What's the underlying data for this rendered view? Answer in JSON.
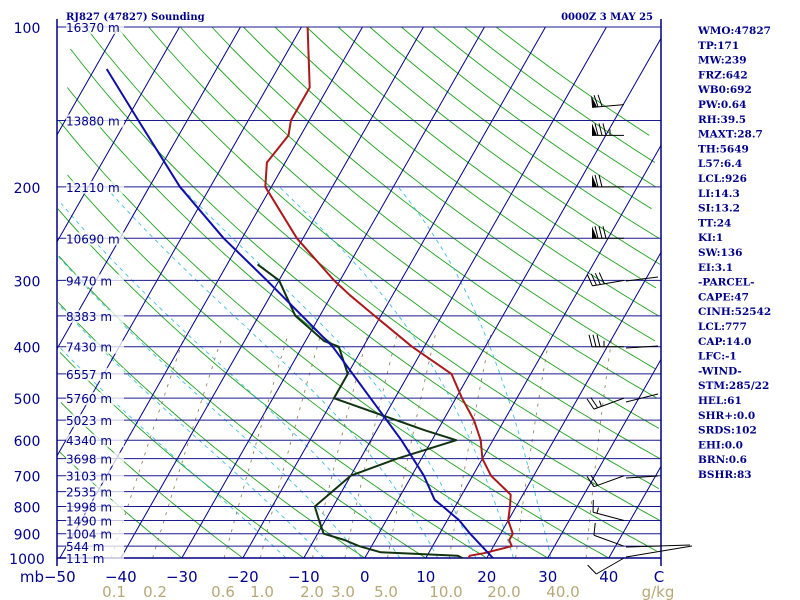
{
  "header": {
    "station": "RJ827 (47827) Sounding",
    "time": "0000Z  3 MAY 25"
  },
  "chart_data": {
    "type": "line",
    "title": "RJ827 (47827) Sounding",
    "x_axis": {
      "label": "mb",
      "ticks": [
        -50,
        -40,
        -30,
        -20,
        -10,
        0,
        10,
        20,
        30,
        40
      ],
      "end_label": "C",
      "range": [
        -50,
        50
      ]
    },
    "y_axis": {
      "ticks": [
        100,
        200,
        300,
        400,
        500,
        600,
        700,
        800,
        900,
        1000
      ],
      "range": [
        1000,
        100
      ],
      "scale": "log-pressure"
    },
    "mixing_ratio_axis": {
      "unit": "g/kg",
      "ticks": [
        "0.1",
        "0.2",
        "0.6",
        "1.0",
        "2.0",
        "3.0",
        "5.0",
        "10.0",
        "20.0",
        "40.0"
      ]
    },
    "heights": [
      {
        "p": 100,
        "label": "16370 m"
      },
      {
        "p": 150,
        "label": "13880 m"
      },
      {
        "p": 200,
        "label": "12110 m"
      },
      {
        "p": 250,
        "label": "10690 m"
      },
      {
        "p": 300,
        "label": "9470 m"
      },
      {
        "p": 350,
        "label": "8383 m"
      },
      {
        "p": 400,
        "label": "7430 m"
      },
      {
        "p": 450,
        "label": "6557 m"
      },
      {
        "p": 500,
        "label": "5760 m"
      },
      {
        "p": 550,
        "label": "5023 m"
      },
      {
        "p": 600,
        "label": "4340 m"
      },
      {
        "p": 650,
        "label": "3698 m"
      },
      {
        "p": 700,
        "label": "3103 m"
      },
      {
        "p": 750,
        "label": "2535 m"
      },
      {
        "p": 800,
        "label": "1998 m"
      },
      {
        "p": 850,
        "label": "1490 m"
      },
      {
        "p": 900,
        "label": "1004 m"
      },
      {
        "p": 950,
        "label": "544 m"
      },
      {
        "p": 1000,
        "label": "111 m"
      }
    ],
    "series": [
      {
        "name": "temperature",
        "color": "#aa1a1a",
        "points": [
          [
            1000,
            17
          ],
          [
            990,
            17
          ],
          [
            980,
            19
          ],
          [
            950,
            23
          ],
          [
            925,
            22
          ],
          [
            900,
            22
          ],
          [
            850,
            20
          ],
          [
            800,
            19
          ],
          [
            760,
            18
          ],
          [
            700,
            13
          ],
          [
            650,
            10
          ],
          [
            600,
            8
          ],
          [
            550,
            5
          ],
          [
            500,
            1
          ],
          [
            450,
            -3
          ],
          [
            400,
            -12
          ],
          [
            350,
            -21
          ],
          [
            320,
            -27
          ],
          [
            300,
            -31
          ],
          [
            250,
            -41
          ],
          [
            200,
            -51
          ],
          [
            180,
            -53
          ],
          [
            160,
            -52
          ],
          [
            150,
            -53
          ],
          [
            130,
            -53
          ],
          [
            100,
            -59
          ]
        ]
      },
      {
        "name": "dewpoint",
        "color": "#113311",
        "points": [
          [
            1000,
            16
          ],
          [
            990,
            15
          ],
          [
            975,
            2
          ],
          [
            950,
            -2
          ],
          [
            925,
            -5
          ],
          [
            900,
            -9
          ],
          [
            850,
            -11
          ],
          [
            800,
            -13
          ],
          [
            700,
            -10
          ],
          [
            650,
            -4
          ],
          [
            600,
            4
          ],
          [
            575,
            -2
          ],
          [
            500,
            -20
          ],
          [
            450,
            -20
          ],
          [
            400,
            -24
          ],
          [
            390,
            -27
          ],
          [
            350,
            -34
          ],
          [
            300,
            -40
          ],
          [
            280,
            -45
          ]
        ]
      },
      {
        "name": "parcel",
        "color": "#1010a8",
        "points": [
          [
            1000,
            21
          ],
          [
            900,
            15
          ],
          [
            850,
            12
          ],
          [
            800,
            8
          ],
          [
            777,
            6
          ],
          [
            700,
            2
          ],
          [
            600,
            -5
          ],
          [
            500,
            -14
          ],
          [
            400,
            -25
          ],
          [
            300,
            -42
          ],
          [
            250,
            -53
          ],
          [
            200,
            -65
          ],
          [
            150,
            -78
          ],
          [
            120,
            -88
          ]
        ]
      }
    ],
    "wind_barbs": [
      {
        "p": 1000,
        "dir": 240,
        "spd": 10
      },
      {
        "p": 950,
        "dir": 290,
        "spd": 10
      },
      {
        "p": 850,
        "dir": 285,
        "spd": 15
      },
      {
        "p": 700,
        "dir": 250,
        "spd": 20
      },
      {
        "p": 500,
        "dir": 250,
        "spd": 25
      },
      {
        "p": 400,
        "dir": 270,
        "spd": 35
      },
      {
        "p": 300,
        "dir": 260,
        "spd": 40
      },
      {
        "p": 250,
        "dir": 270,
        "spd": 80
      },
      {
        "p": 200,
        "dir": 270,
        "spd": 70
      },
      {
        "p": 160,
        "dir": 270,
        "spd": 85
      },
      {
        "p": 140,
        "dir": 265,
        "spd": 70
      }
    ]
  },
  "indices": [
    "WMO:47827",
    "TP:171",
    "MW:239",
    "FRZ:642",
    "WB0:692",
    "PW:0.64",
    "RH:39.5",
    "MAXT:28.7",
    "TH:5649",
    "L57:6.4",
    "LCL:926",
    "LI:14.3",
    "SI:13.2",
    "TT:24",
    "KI:1",
    "SW:136",
    "EI:3.1",
    "-PARCEL-",
    "CAPE:47",
    "CINH:52542",
    "LCL:777",
    "CAP:14.0",
    "LFC:-1",
    "-WIND-",
    "STM:285/22",
    "HEL:61",
    "SHR+:0.0",
    "SRDS:102",
    "EHI:0.0",
    "BRN:0.6",
    "BSHR:83"
  ],
  "colors": {
    "isobar": "#1a1a8c",
    "isotherm": "#00008b",
    "dry_adiabat": "#1fa31f",
    "moist_adiabat": "#40c0e0",
    "mixing_ratio": "#8a7a50",
    "frame": "#000080"
  }
}
